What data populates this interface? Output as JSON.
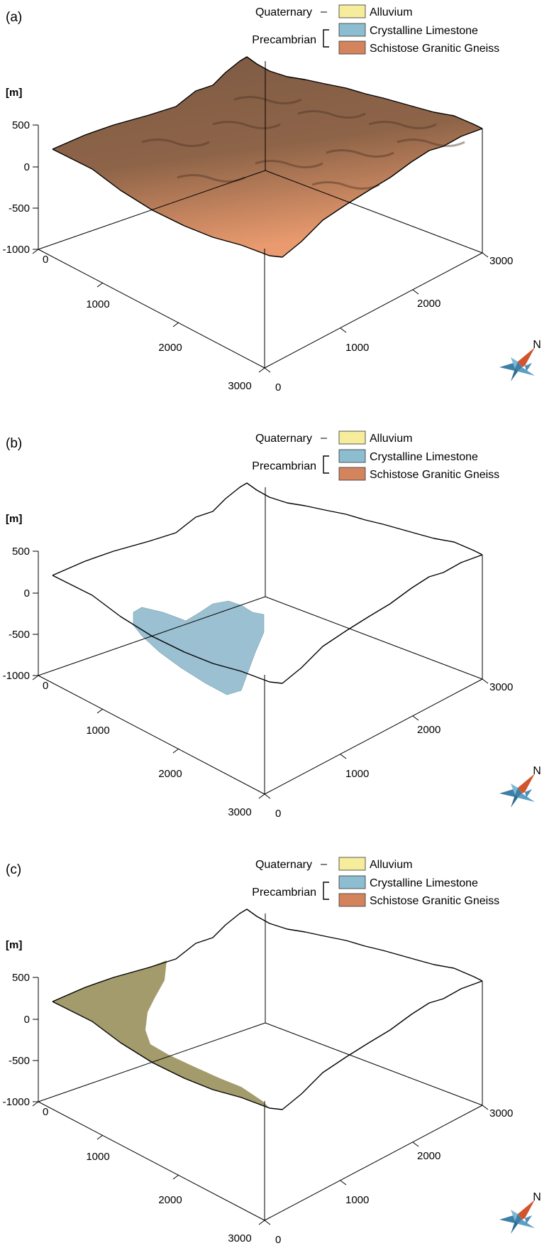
{
  "legend": {
    "groups": [
      {
        "label": "Quaternary",
        "bracket": "dash",
        "units": [
          0
        ]
      },
      {
        "label": "Precambrian",
        "bracket": "bracket",
        "units": [
          1,
          2
        ]
      }
    ],
    "units": [
      {
        "name": "Alluvium",
        "color": "#f5ec9c"
      },
      {
        "name": "Crystalline Limestone",
        "color": "#8cbdd0"
      },
      {
        "name": "Schistose Granitic Gneiss",
        "color": "#d4845c"
      }
    ]
  },
  "axes": {
    "z_unit": "[m]",
    "z_ticks": [
      "500",
      "0",
      "-500",
      "-1000"
    ],
    "x_ticks": [
      "0",
      "1000",
      "2000",
      "3000"
    ],
    "y_ticks": [
      "0",
      "1000",
      "2000",
      "3000"
    ]
  },
  "north_label": "N",
  "north_icon": "compass-rose-icon",
  "panels": [
    {
      "label": "(a)",
      "unit_shown": "Schistose Granitic Gneiss",
      "surface_color": "#c98a62"
    },
    {
      "label": "(b)",
      "unit_shown": "Crystalline Limestone",
      "surface_color": "#8fb9cc"
    },
    {
      "label": "(c)",
      "unit_shown": "Alluvium",
      "surface_color": "#a39b6c"
    }
  ]
}
